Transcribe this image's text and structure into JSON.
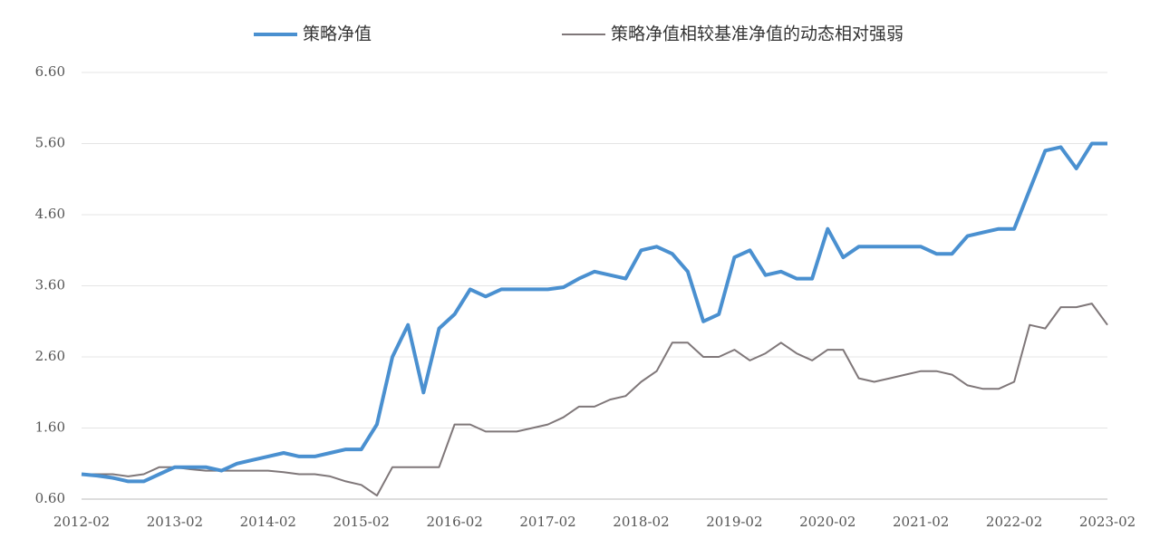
{
  "chart_data": {
    "type": "line",
    "x": [
      "2012-02",
      "2012-04",
      "2012-06",
      "2012-08",
      "2012-10",
      "2012-12",
      "2013-02",
      "2013-04",
      "2013-06",
      "2013-08",
      "2013-10",
      "2013-12",
      "2014-02",
      "2014-04",
      "2014-06",
      "2014-08",
      "2014-10",
      "2014-12",
      "2015-02",
      "2015-04",
      "2015-06",
      "2015-08",
      "2015-10",
      "2015-12",
      "2016-02",
      "2016-04",
      "2016-06",
      "2016-08",
      "2016-10",
      "2016-12",
      "2017-02",
      "2017-04",
      "2017-06",
      "2017-08",
      "2017-10",
      "2017-12",
      "2018-02",
      "2018-04",
      "2018-06",
      "2018-08",
      "2018-10",
      "2018-12",
      "2019-02",
      "2019-04",
      "2019-06",
      "2019-08",
      "2019-10",
      "2019-12",
      "2020-02",
      "2020-04",
      "2020-06",
      "2020-08",
      "2020-10",
      "2020-12",
      "2021-02",
      "2021-04",
      "2021-06",
      "2021-08",
      "2021-10",
      "2021-12",
      "2022-02",
      "2022-04",
      "2022-06",
      "2022-08",
      "2022-10",
      "2022-12",
      "2023-02"
    ],
    "series": [
      {
        "name": "策略净值",
        "color": "#4a90d0",
        "width": 4,
        "values": [
          0.95,
          0.93,
          0.9,
          0.85,
          0.85,
          0.95,
          1.05,
          1.05,
          1.05,
          1.0,
          1.1,
          1.15,
          1.2,
          1.25,
          1.2,
          1.2,
          1.25,
          1.3,
          1.3,
          1.65,
          2.6,
          3.05,
          2.1,
          3.0,
          3.2,
          3.55,
          3.45,
          3.55,
          3.55,
          3.55,
          3.55,
          3.58,
          3.7,
          3.8,
          3.75,
          3.7,
          4.1,
          4.15,
          4.05,
          3.8,
          3.1,
          3.2,
          4.0,
          4.1,
          3.75,
          3.8,
          3.7,
          3.7,
          4.4,
          4.0,
          4.15,
          4.15,
          4.15,
          4.15,
          4.15,
          4.05,
          4.05,
          4.3,
          4.35,
          4.4,
          4.4,
          4.95,
          5.5,
          5.55,
          5.25,
          5.6,
          5.6
        ]
      },
      {
        "name": "策略净值相较基准净值的动态相对强弱",
        "color": "#7f7779",
        "width": 2,
        "values": [
          0.95,
          0.95,
          0.95,
          0.92,
          0.95,
          1.05,
          1.05,
          1.02,
          1.0,
          1.0,
          1.0,
          1.0,
          1.0,
          0.98,
          0.95,
          0.95,
          0.92,
          0.85,
          0.8,
          0.65,
          1.05,
          1.05,
          1.05,
          1.05,
          1.65,
          1.65,
          1.55,
          1.55,
          1.55,
          1.6,
          1.65,
          1.75,
          1.9,
          1.9,
          2.0,
          2.05,
          2.25,
          2.4,
          2.8,
          2.8,
          2.6,
          2.6,
          2.7,
          2.55,
          2.65,
          2.8,
          2.65,
          2.55,
          2.7,
          2.7,
          2.3,
          2.25,
          2.3,
          2.35,
          2.4,
          2.4,
          2.35,
          2.2,
          2.15,
          2.15,
          2.25,
          3.05,
          3.0,
          3.3,
          3.3,
          3.35,
          3.05
        ]
      }
    ],
    "ylim": [
      0.6,
      6.6
    ],
    "yticks": [
      {
        "value": 0.6,
        "label": "0.60"
      },
      {
        "value": 1.6,
        "label": "1.60"
      },
      {
        "value": 2.6,
        "label": "2.60"
      },
      {
        "value": 3.6,
        "label": "3.60"
      },
      {
        "value": 4.6,
        "label": "4.60"
      },
      {
        "value": 5.6,
        "label": "5.60"
      },
      {
        "value": 6.6,
        "label": "6.60"
      }
    ],
    "grid": true
  }
}
